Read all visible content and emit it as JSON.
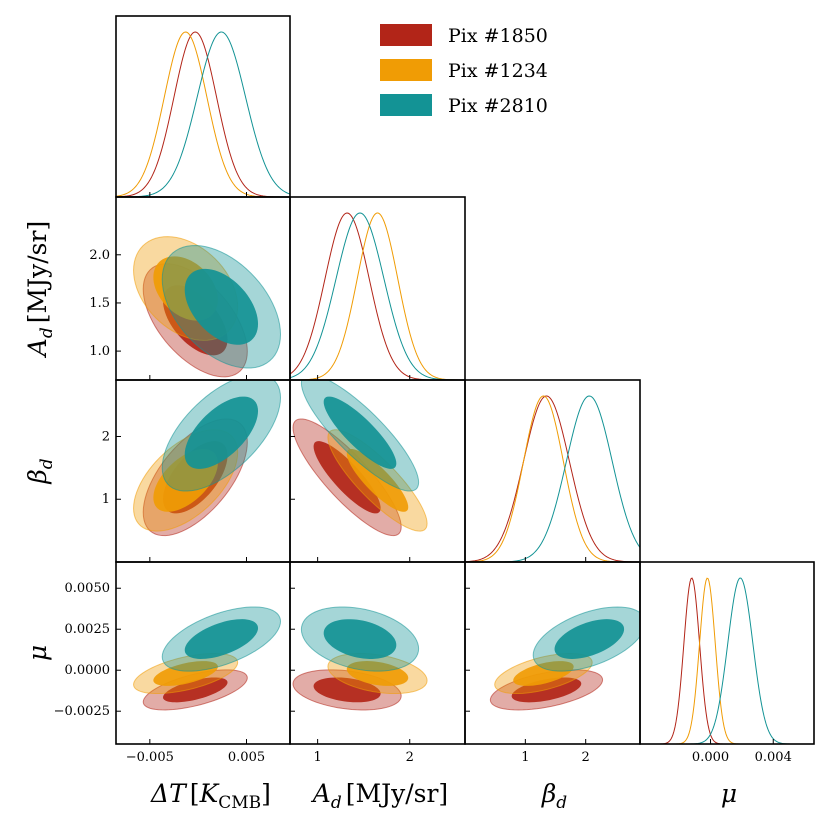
{
  "chart_data": {
    "type": "corner",
    "parameters": [
      {
        "name": "ΔT [K_CMB]",
        "label_main": "ΔT",
        "label_unit": "[K",
        "label_sub": "CMB",
        "label_close": "]",
        "range": [
          -0.0085,
          0.0095
        ],
        "ticks": [
          -0.005,
          0.005
        ],
        "tick_labels": [
          "−0.005",
          "0.005"
        ]
      },
      {
        "name": "A_d [MJy/sr]",
        "label_main": "A",
        "label_sub": "d",
        "label_unit": "[MJy/sr]",
        "range": [
          0.7,
          2.6
        ],
        "ticks": [
          1,
          2
        ],
        "tick_labels": [
          "1",
          "2"
        ],
        "y_ticks": [
          1.0,
          1.5,
          2.0
        ],
        "y_tick_labels": [
          "1.0",
          "1.5",
          "2.0"
        ]
      },
      {
        "name": "β_d",
        "label_main": "β",
        "label_sub": "d",
        "range": [
          0.0,
          2.9
        ],
        "ticks": [
          1,
          2
        ],
        "tick_labels": [
          "1",
          "2"
        ],
        "y_ticks": [
          1,
          2
        ],
        "y_tick_labels": [
          "1",
          "2"
        ]
      },
      {
        "name": "μ",
        "label_main": "μ",
        "range": [
          -0.0045,
          0.0066
        ],
        "ticks": [
          0.0,
          0.004
        ],
        "tick_labels": [
          "0.000",
          "0.004"
        ],
        "y_ticks": [
          -0.0025,
          0.0,
          0.0025,
          0.005
        ],
        "y_tick_labels": [
          "−0.0025",
          "0.0000",
          "0.0025",
          "0.0050"
        ]
      }
    ],
    "series": [
      {
        "name": "Pix #1850",
        "color": "#b22518",
        "mean": [
          -0.0003,
          1.32,
          1.35,
          -0.0012
        ],
        "sd": [
          0.0022,
          0.24,
          0.38,
          0.0005
        ],
        "corr": [
          [
            1,
            -0.55,
            0.6,
            0.6
          ],
          [
            -0.55,
            1,
            -0.85,
            -0.3
          ],
          [
            0.6,
            -0.85,
            1,
            0.5
          ],
          [
            0.6,
            -0.3,
            0.5,
            1
          ]
        ]
      },
      {
        "name": "Pix #1234",
        "color": "#f09c05",
        "mean": [
          -0.0013,
          1.65,
          1.3,
          -0.0002
        ],
        "sd": [
          0.0022,
          0.22,
          0.33,
          0.0005
        ],
        "corr": [
          [
            1,
            -0.35,
            0.55,
            0.55
          ],
          [
            -0.35,
            1,
            -0.85,
            -0.35
          ],
          [
            0.55,
            -0.85,
            1,
            0.55
          ],
          [
            0.55,
            -0.35,
            0.55,
            1
          ]
        ]
      },
      {
        "name": "Pix #2810",
        "color": "#139395",
        "mean": [
          0.0024,
          1.46,
          2.06,
          0.0019
        ],
        "sd": [
          0.0025,
          0.26,
          0.38,
          0.0008
        ],
        "corr": [
          [
            1,
            -0.45,
            0.6,
            0.55
          ],
          [
            -0.45,
            1,
            -0.85,
            -0.3
          ],
          [
            0.6,
            -0.85,
            1,
            0.5
          ],
          [
            0.55,
            -0.3,
            0.5,
            1
          ]
        ]
      }
    ],
    "contour_levels": [
      "68%",
      "95%"
    ],
    "legend_position": "top-right"
  }
}
